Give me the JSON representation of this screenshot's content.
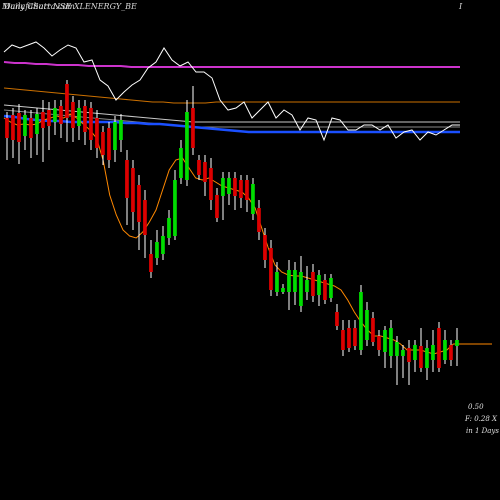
{
  "header": {
    "left_text": "MunafaSutra.com",
    "overlay_text": "Daily Chart NSE XLENERGY_BE",
    "right_text": "I"
  },
  "footer": {
    "value_line": "0.50",
    "info_line": "F: 0.28  X",
    "interval_line": "in 1 Days"
  },
  "colors": {
    "background": "#000000",
    "up_candle": "#00dd00",
    "down_candle": "#dd0000",
    "wick": "#ffffff",
    "ema_short": "#ff8800",
    "ema_mid": "#cc7000",
    "ema_long_1": "#c8c8c8",
    "ema_long_2": "#888888",
    "ema_blue": "#1a4fff",
    "ema_magenta": "#cc33cc",
    "oscillator": "#ffffff"
  },
  "chart_data": {
    "type": "candlestick",
    "title": "Daily Chart NSE XLENERGY_BE",
    "candles": [
      {
        "dir": "down",
        "body": [
          118,
          138
        ],
        "wick": [
          112,
          160
        ]
      },
      {
        "dir": "down",
        "body": [
          115,
          140
        ],
        "wick": [
          108,
          158
        ]
      },
      {
        "dir": "down",
        "body": [
          113,
          142
        ],
        "wick": [
          104,
          164
        ]
      },
      {
        "dir": "up",
        "body": [
          115,
          136
        ],
        "wick": [
          110,
          150
        ]
      },
      {
        "dir": "down",
        "body": [
          118,
          138
        ],
        "wick": [
          110,
          158
        ]
      },
      {
        "dir": "up",
        "body": [
          114,
          134
        ],
        "wick": [
          108,
          155
        ]
      },
      {
        "dir": "down",
        "body": [
          112,
          128
        ],
        "wick": [
          100,
          162
        ]
      },
      {
        "dir": "down",
        "body": [
          110,
          126
        ],
        "wick": [
          102,
          150
        ]
      },
      {
        "dir": "up",
        "body": [
          108,
          122
        ],
        "wick": [
          100,
          135
        ]
      },
      {
        "dir": "down",
        "body": [
          106,
          124
        ],
        "wick": [
          100,
          138
        ]
      },
      {
        "dir": "down",
        "body": [
          84,
          118
        ],
        "wick": [
          80,
          142
        ]
      },
      {
        "dir": "down",
        "body": [
          102,
          128
        ],
        "wick": [
          96,
          142
        ]
      },
      {
        "dir": "up",
        "body": [
          108,
          126
        ],
        "wick": [
          100,
          140
        ]
      },
      {
        "dir": "down",
        "body": [
          106,
          132
        ],
        "wick": [
          100,
          145
        ]
      },
      {
        "dir": "down",
        "body": [
          108,
          140
        ],
        "wick": [
          102,
          150
        ]
      },
      {
        "dir": "down",
        "body": [
          118,
          148
        ],
        "wick": [
          110,
          158
        ]
      },
      {
        "dir": "down",
        "body": [
          132,
          155
        ],
        "wick": [
          126,
          165
        ]
      },
      {
        "dir": "down",
        "body": [
          128,
          160
        ],
        "wick": [
          122,
          168
        ]
      },
      {
        "dir": "up",
        "body": [
          122,
          150
        ],
        "wick": [
          116,
          162
        ]
      },
      {
        "dir": "up",
        "body": [
          120,
          140
        ],
        "wick": [
          114,
          152
        ]
      },
      {
        "dir": "down",
        "body": [
          160,
          198
        ],
        "wick": [
          150,
          225
        ]
      },
      {
        "dir": "down",
        "body": [
          168,
          212
        ],
        "wick": [
          160,
          230
        ]
      },
      {
        "dir": "down",
        "body": [
          185,
          222
        ],
        "wick": [
          175,
          250
        ]
      },
      {
        "dir": "down",
        "body": [
          200,
          235
        ],
        "wick": [
          190,
          258
        ]
      },
      {
        "dir": "down",
        "body": [
          254,
          272
        ],
        "wick": [
          240,
          278
        ]
      },
      {
        "dir": "up",
        "body": [
          242,
          258
        ],
        "wick": [
          230,
          265
        ]
      },
      {
        "dir": "up",
        "body": [
          236,
          254
        ],
        "wick": [
          226,
          260
        ]
      },
      {
        "dir": "up",
        "body": [
          218,
          238
        ],
        "wick": [
          210,
          245
        ]
      },
      {
        "dir": "up",
        "body": [
          180,
          236
        ],
        "wick": [
          170,
          240
        ]
      },
      {
        "dir": "up",
        "body": [
          148,
          178
        ],
        "wick": [
          140,
          184
        ]
      },
      {
        "dir": "up",
        "body": [
          112,
          180
        ],
        "wick": [
          100,
          186
        ]
      },
      {
        "dir": "down",
        "body": [
          108,
          148
        ],
        "wick": [
          86,
          155
        ]
      },
      {
        "dir": "down",
        "body": [
          160,
          175
        ],
        "wick": [
          155,
          180
        ]
      },
      {
        "dir": "down",
        "body": [
          162,
          182
        ],
        "wick": [
          155,
          196
        ]
      },
      {
        "dir": "down",
        "body": [
          168,
          200
        ],
        "wick": [
          158,
          210
        ]
      },
      {
        "dir": "down",
        "body": [
          195,
          218
        ],
        "wick": [
          188,
          222
        ]
      },
      {
        "dir": "up",
        "body": [
          178,
          196
        ],
        "wick": [
          172,
          220
        ]
      },
      {
        "dir": "up",
        "body": [
          178,
          194
        ],
        "wick": [
          172,
          205
        ]
      },
      {
        "dir": "down",
        "body": [
          178,
          196
        ],
        "wick": [
          172,
          210
        ]
      },
      {
        "dir": "down",
        "body": [
          180,
          198
        ],
        "wick": [
          175,
          208
        ]
      },
      {
        "dir": "down",
        "body": [
          180,
          200
        ],
        "wick": [
          175,
          212
        ]
      },
      {
        "dir": "up",
        "body": [
          184,
          214
        ],
        "wick": [
          178,
          220
        ]
      },
      {
        "dir": "down",
        "body": [
          208,
          232
        ],
        "wick": [
          200,
          240
        ]
      },
      {
        "dir": "down",
        "body": [
          235,
          260
        ],
        "wick": [
          228,
          268
        ]
      },
      {
        "dir": "down",
        "body": [
          248,
          290
        ],
        "wick": [
          240,
          296
        ]
      },
      {
        "dir": "up",
        "body": [
          272,
          292
        ],
        "wick": [
          262,
          296
        ]
      },
      {
        "dir": "up",
        "body": [
          288,
          292
        ],
        "wick": [
          284,
          294
        ]
      },
      {
        "dir": "up",
        "body": [
          270,
          292
        ],
        "wick": [
          260,
          310
        ]
      },
      {
        "dir": "up",
        "body": [
          270,
          292
        ],
        "wick": [
          262,
          305
        ]
      },
      {
        "dir": "up",
        "body": [
          272,
          306
        ],
        "wick": [
          256,
          312
        ]
      },
      {
        "dir": "up",
        "body": [
          280,
          292
        ],
        "wick": [
          266,
          300
        ]
      },
      {
        "dir": "down",
        "body": [
          272,
          296
        ],
        "wick": [
          264,
          302
        ]
      },
      {
        "dir": "up",
        "body": [
          275,
          295
        ],
        "wick": [
          270,
          306
        ]
      },
      {
        "dir": "down",
        "body": [
          280,
          300
        ],
        "wick": [
          274,
          304
        ]
      },
      {
        "dir": "up",
        "body": [
          278,
          298
        ],
        "wick": [
          274,
          302
        ]
      },
      {
        "dir": "down",
        "body": [
          312,
          326
        ],
        "wick": [
          304,
          330
        ]
      },
      {
        "dir": "down",
        "body": [
          330,
          350
        ],
        "wick": [
          320,
          356
        ]
      },
      {
        "dir": "down",
        "body": [
          328,
          348
        ],
        "wick": [
          320,
          352
        ]
      },
      {
        "dir": "down",
        "body": [
          328,
          346
        ],
        "wick": [
          320,
          350
        ]
      },
      {
        "dir": "up",
        "body": [
          292,
          350
        ],
        "wick": [
          285,
          355
        ]
      },
      {
        "dir": "up",
        "body": [
          310,
          340
        ],
        "wick": [
          302,
          346
        ]
      },
      {
        "dir": "down",
        "body": [
          318,
          342
        ],
        "wick": [
          312,
          346
        ]
      },
      {
        "dir": "down",
        "body": [
          336,
          350
        ],
        "wick": [
          330,
          356
        ]
      },
      {
        "dir": "up",
        "body": [
          330,
          352
        ],
        "wick": [
          326,
          368
        ]
      },
      {
        "dir": "up",
        "body": [
          328,
          356
        ],
        "wick": [
          320,
          368
        ]
      },
      {
        "dir": "up",
        "body": [
          342,
          356
        ],
        "wick": [
          336,
          385
        ]
      },
      {
        "dir": "up",
        "body": [
          350,
          356
        ],
        "wick": [
          345,
          378
        ]
      },
      {
        "dir": "down",
        "body": [
          348,
          362
        ],
        "wick": [
          340,
          385
        ]
      },
      {
        "dir": "up",
        "body": [
          345,
          360
        ],
        "wick": [
          340,
          372
        ]
      },
      {
        "dir": "down",
        "body": [
          346,
          368
        ],
        "wick": [
          328,
          372
        ]
      },
      {
        "dir": "up",
        "body": [
          348,
          368
        ],
        "wick": [
          340,
          380
        ]
      },
      {
        "dir": "up",
        "body": [
          345,
          360
        ],
        "wick": [
          330,
          372
        ]
      },
      {
        "dir": "down",
        "body": [
          328,
          368
        ],
        "wick": [
          322,
          372
        ]
      },
      {
        "dir": "up",
        "body": [
          340,
          360
        ],
        "wick": [
          330,
          364
        ]
      },
      {
        "dir": "down",
        "body": [
          345,
          360
        ],
        "wick": [
          340,
          366
        ]
      },
      {
        "dir": "up",
        "body": [
          340,
          346
        ],
        "wick": [
          328,
          366
        ]
      }
    ],
    "ema_short": [
      118,
      122,
      125,
      124,
      125,
      124,
      120,
      118,
      116,
      118,
      114,
      118,
      124,
      130,
      138,
      160,
      195,
      215,
      230,
      236,
      238,
      232,
      222,
      210,
      190,
      170,
      160,
      158,
      168,
      178,
      180,
      178,
      182,
      186,
      188,
      190,
      192,
      198,
      208,
      228,
      248,
      265,
      272,
      275,
      276,
      276,
      278,
      280,
      282,
      284,
      286,
      290,
      300,
      312,
      322,
      330,
      336,
      336,
      338,
      340,
      344,
      350,
      350,
      350,
      352,
      354,
      352,
      350,
      344,
      344
    ],
    "ema_mid": [
      88,
      89,
      90,
      91,
      92,
      93,
      94,
      95,
      96,
      97,
      98,
      99,
      100,
      101,
      102,
      102,
      103,
      103,
      103,
      103,
      102,
      102,
      102,
      102,
      102,
      102,
      102,
      102,
      102,
      102,
      102,
      102,
      102,
      102,
      102,
      102,
      102,
      102,
      102,
      102,
      102,
      102,
      102,
      102
    ],
    "ema_long_1": [
      105,
      106,
      107,
      108,
      109,
      110,
      111,
      112,
      113,
      114,
      115,
      116,
      117,
      118,
      119,
      120,
      121,
      122,
      122,
      122,
      122,
      122,
      122,
      122,
      122,
      122,
      122,
      122,
      122,
      122,
      122,
      122,
      122,
      122,
      122,
      122,
      122,
      122,
      122,
      122,
      122,
      122
    ],
    "ema_long_2": [
      110,
      111,
      112,
      113,
      114,
      115,
      116,
      117,
      118,
      119,
      120,
      121,
      122,
      123,
      124,
      125,
      126,
      127,
      127,
      127,
      127,
      127,
      127,
      127,
      127,
      127,
      127,
      127,
      127,
      127,
      127,
      127,
      127,
      127,
      127,
      127,
      127,
      127,
      127,
      127,
      127,
      127
    ],
    "ema_blue": [
      116,
      117,
      119,
      120,
      121,
      121,
      122,
      122,
      122,
      122,
      122,
      123,
      123,
      124,
      124,
      125,
      126,
      127,
      128,
      129,
      130,
      131,
      132,
      132,
      132,
      132,
      132,
      132,
      132,
      132,
      132,
      132,
      132,
      132,
      132,
      132,
      132,
      132,
      132,
      132,
      132,
      132
    ],
    "ema_magenta": [
      62,
      63,
      63,
      64,
      64,
      65,
      65,
      65,
      66,
      66,
      66,
      66,
      67,
      67,
      67,
      67,
      67,
      67,
      67,
      67,
      67,
      67,
      67,
      67,
      67,
      67,
      67,
      67,
      67,
      67,
      67,
      67,
      67,
      67,
      67,
      67,
      67,
      67,
      67,
      67,
      67,
      67,
      67,
      67
    ],
    "oscillator": [
      52,
      45,
      48,
      45,
      42,
      48,
      56,
      50,
      45,
      48,
      62,
      60,
      80,
      86,
      100,
      92,
      85,
      80,
      68,
      62,
      48,
      60,
      66,
      62,
      72,
      72,
      78,
      100,
      110,
      108,
      102,
      118,
      110,
      102,
      118,
      110,
      115,
      130,
      118,
      120,
      140,
      118,
      120,
      130,
      130,
      125,
      125,
      130,
      125,
      138,
      132,
      130,
      140,
      132,
      135,
      130,
      125,
      125
    ]
  }
}
